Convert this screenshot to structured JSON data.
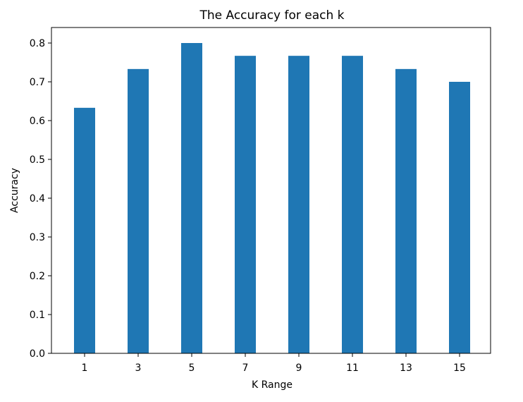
{
  "chart_data": {
    "type": "bar",
    "title": "The Accuracy for each k",
    "xlabel": "K Range",
    "ylabel": "Accuracy",
    "categories": [
      "1",
      "3",
      "5",
      "7",
      "9",
      "11",
      "13",
      "15"
    ],
    "values": [
      0.633,
      0.733,
      0.8,
      0.767,
      0.767,
      0.767,
      0.733,
      0.7
    ],
    "ylim": [
      0,
      0.84
    ],
    "yticks": [
      "0.0",
      "0.1",
      "0.2",
      "0.3",
      "0.4",
      "0.5",
      "0.6",
      "0.7",
      "0.8"
    ],
    "bar_color": "#1f77b4",
    "grid": false,
    "legend": false
  }
}
